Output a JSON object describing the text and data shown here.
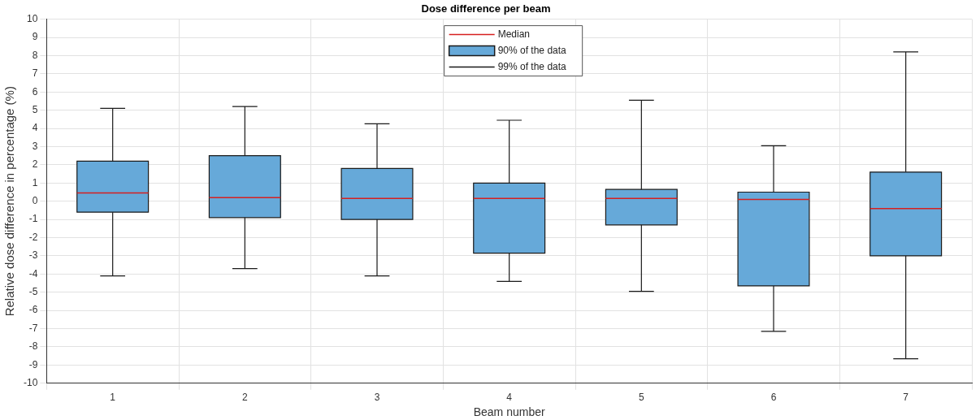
{
  "chart_data": {
    "type": "box",
    "title": "Dose difference per beam",
    "xlabel": "Beam number",
    "ylabel": "Relative dose difference in percentage (%)",
    "categories": [
      "1",
      "2",
      "3",
      "4",
      "5",
      "6",
      "7"
    ],
    "series": [
      {
        "name": "90% of the data",
        "color": "#66a9d9",
        "boxes": [
          {
            "low": -4.1,
            "q1": -0.6,
            "median": 0.45,
            "q3": 2.2,
            "high": 5.1
          },
          {
            "low": -3.7,
            "q1": -0.9,
            "median": 0.2,
            "q3": 2.5,
            "high": 5.2
          },
          {
            "low": -4.1,
            "q1": -1.0,
            "median": 0.15,
            "q3": 1.8,
            "high": 4.25
          },
          {
            "low": -4.4,
            "q1": -2.85,
            "median": 0.15,
            "q3": 1.0,
            "high": 4.45
          },
          {
            "low": -4.95,
            "q1": -1.3,
            "median": 0.15,
            "q3": 0.65,
            "high": 5.55
          },
          {
            "low": -7.15,
            "q1": -4.65,
            "median": 0.1,
            "q3": 0.5,
            "high": 3.05
          },
          {
            "low": -8.65,
            "q1": -3.0,
            "median": -0.4,
            "q3": 1.6,
            "high": 8.2
          }
        ]
      }
    ],
    "annotations": [
      "Median",
      "99% of the data"
    ],
    "ylim": [
      -10,
      10
    ],
    "yticks": [
      -10,
      -9,
      -8,
      -7,
      -6,
      -5,
      -4,
      -3,
      -2,
      -1,
      0,
      1,
      2,
      3,
      4,
      5,
      6,
      7,
      8,
      9,
      10
    ],
    "grid": true,
    "legend": "top"
  }
}
